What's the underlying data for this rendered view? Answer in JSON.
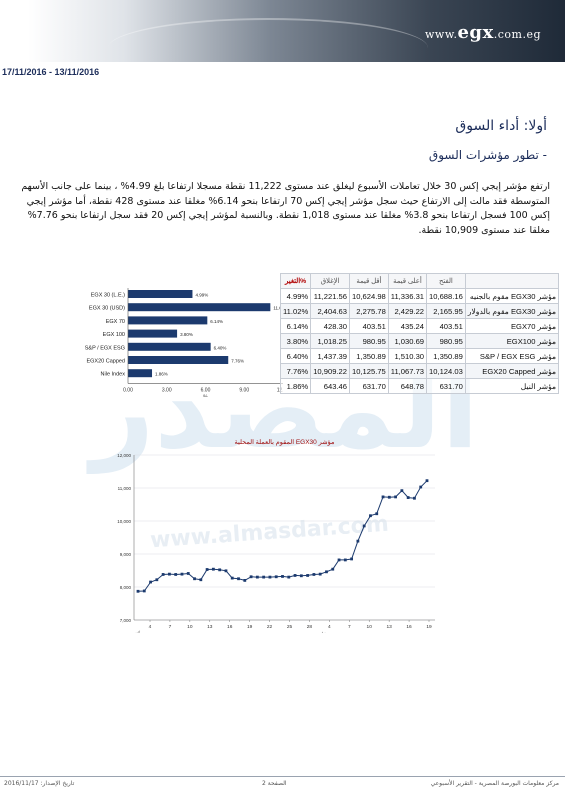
{
  "header": {
    "logo_prefix": "www.",
    "logo_brand": "egx",
    "logo_suffix": ".com.eg",
    "date_range": "17/11/2016 - 13/11/2016"
  },
  "watermark": {
    "arabic": "المصدر",
    "url": "www.almasdar.com"
  },
  "section": {
    "title": "أولا: أداء السوق",
    "subtitle": "- تطور مؤشرات السوق",
    "paragraph": "ارتفع مؤشر إيجي إكس 30 خلال تعاملات الأسبوع ليغلق عند مستوى 11,222 نقطة مسجلا ارتفاعا بلغ 4.99% ، بينما على جانب الأسهم المتوسطة فقد مالت إلى الارتفاع حيث سجل مؤشر إيجي إكس 70 ارتفاعا بنحو 6.14% مغلقا عند مستوى 428 نقطة، أما مؤشر إيجي إكس 100 فسجل ارتفاعا بنحو 3.8% مغلقا عند مستوى 1,018 نقطة. وبالنسبة لمؤشر إيجي إكس 20 فقد سجل ارتفاعا بنحو 7.76% مغلقا عند مستوى 10,909 نقطة."
  },
  "table": {
    "headers": [
      "التغير%",
      "الإغلاق",
      "أقل قيمة",
      "أعلى قيمة",
      "الفتح",
      ""
    ],
    "rows": [
      {
        "change": "4.99%",
        "close": "11,221.56",
        "low": "10,624.98",
        "high": "11,336.31",
        "open": "10,688.16",
        "name": "مؤشر EGX30 مقوم بالجنيه"
      },
      {
        "change": "11.02%",
        "close": "2,404.63",
        "low": "2,275.78",
        "high": "2,429.22",
        "open": "2,165.95",
        "name": "مؤشر EGX30 مقوم بالدولار"
      },
      {
        "change": "6.14%",
        "close": "428.30",
        "low": "403.51",
        "high": "435.24",
        "open": "403.51",
        "name": "مؤشر EGX70"
      },
      {
        "change": "3.80%",
        "close": "1,018.25",
        "low": "980.95",
        "high": "1,030.69",
        "open": "980.95",
        "name": "مؤشر EGX100"
      },
      {
        "change": "6.40%",
        "close": "1,437.39",
        "low": "1,350.89",
        "high": "1,510.30",
        "open": "1,350.89",
        "name": "مؤشر S&P / EGX ESG"
      },
      {
        "change": "7.76%",
        "close": "10,909.22",
        "low": "10,125.75",
        "high": "11,067.73",
        "open": "10,124.03",
        "name": "مؤشر EGX20 Capped"
      },
      {
        "change": "1.86%",
        "close": "643.46",
        "low": "631.70",
        "high": "648.78",
        "open": "631.70",
        "name": "مؤشر النيل"
      }
    ]
  },
  "chart_data": [
    {
      "type": "bar",
      "orientation": "horizontal",
      "categories": [
        "EGX 30 (L.E.)",
        "EGX 30 (USD)",
        "EGX 70",
        "EGX 100",
        "S&P / EGX ESG",
        "EGX20 Capped",
        "Nile Index"
      ],
      "values": [
        4.99,
        11.02,
        6.14,
        3.8,
        6.4,
        7.76,
        1.86
      ],
      "data_labels": [
        "4.99%",
        "11.02%",
        "6.14%",
        "3.80%",
        "6.40%",
        "7.76%",
        "1.86%"
      ],
      "xlabel": "%",
      "xlim": [
        0,
        12
      ],
      "xticks": [
        "0.00",
        "3.00",
        "6.00",
        "9.00",
        "12.00"
      ],
      "color": "#1c3a6e",
      "grid": false,
      "legend": "none"
    },
    {
      "type": "line",
      "title": "مؤشر EGX30 المقوم بالعملة المحلية",
      "title_highlight": "EGX30",
      "yticks": [
        "7,000",
        "8,000",
        "9,000",
        "10,000",
        "11,000",
        "12,000"
      ],
      "ylim": [
        7000,
        12000
      ],
      "xticks": [
        "4",
        "7",
        "10",
        "13",
        "16",
        "19",
        "22",
        "25",
        "28",
        "4",
        "7",
        "10",
        "13",
        "16",
        "19"
      ],
      "xlabels_month": [
        "أكتوبر",
        "نوفمبر"
      ],
      "values": [
        7870,
        7880,
        8150,
        8220,
        8380,
        8390,
        8380,
        8390,
        8410,
        8250,
        8220,
        8530,
        8540,
        8520,
        8490,
        8270,
        8250,
        8200,
        8310,
        8300,
        8300,
        8300,
        8310,
        8320,
        8300,
        8350,
        8340,
        8350,
        8380,
        8390,
        8460,
        8540,
        8820,
        8820,
        8850,
        9390,
        9850,
        10160,
        10220,
        10730,
        10720,
        10730,
        10920,
        10710,
        10690,
        11030,
        11222
      ],
      "color": "#1c3a6e",
      "grid": true,
      "legend": "none"
    }
  ],
  "footer": {
    "left": "تاريخ الإصدار: 2016/11/17",
    "mid": "الصفحة 2",
    "right": "مركز معلومات البورصة المصرية - التقرير الأسبوعي"
  }
}
